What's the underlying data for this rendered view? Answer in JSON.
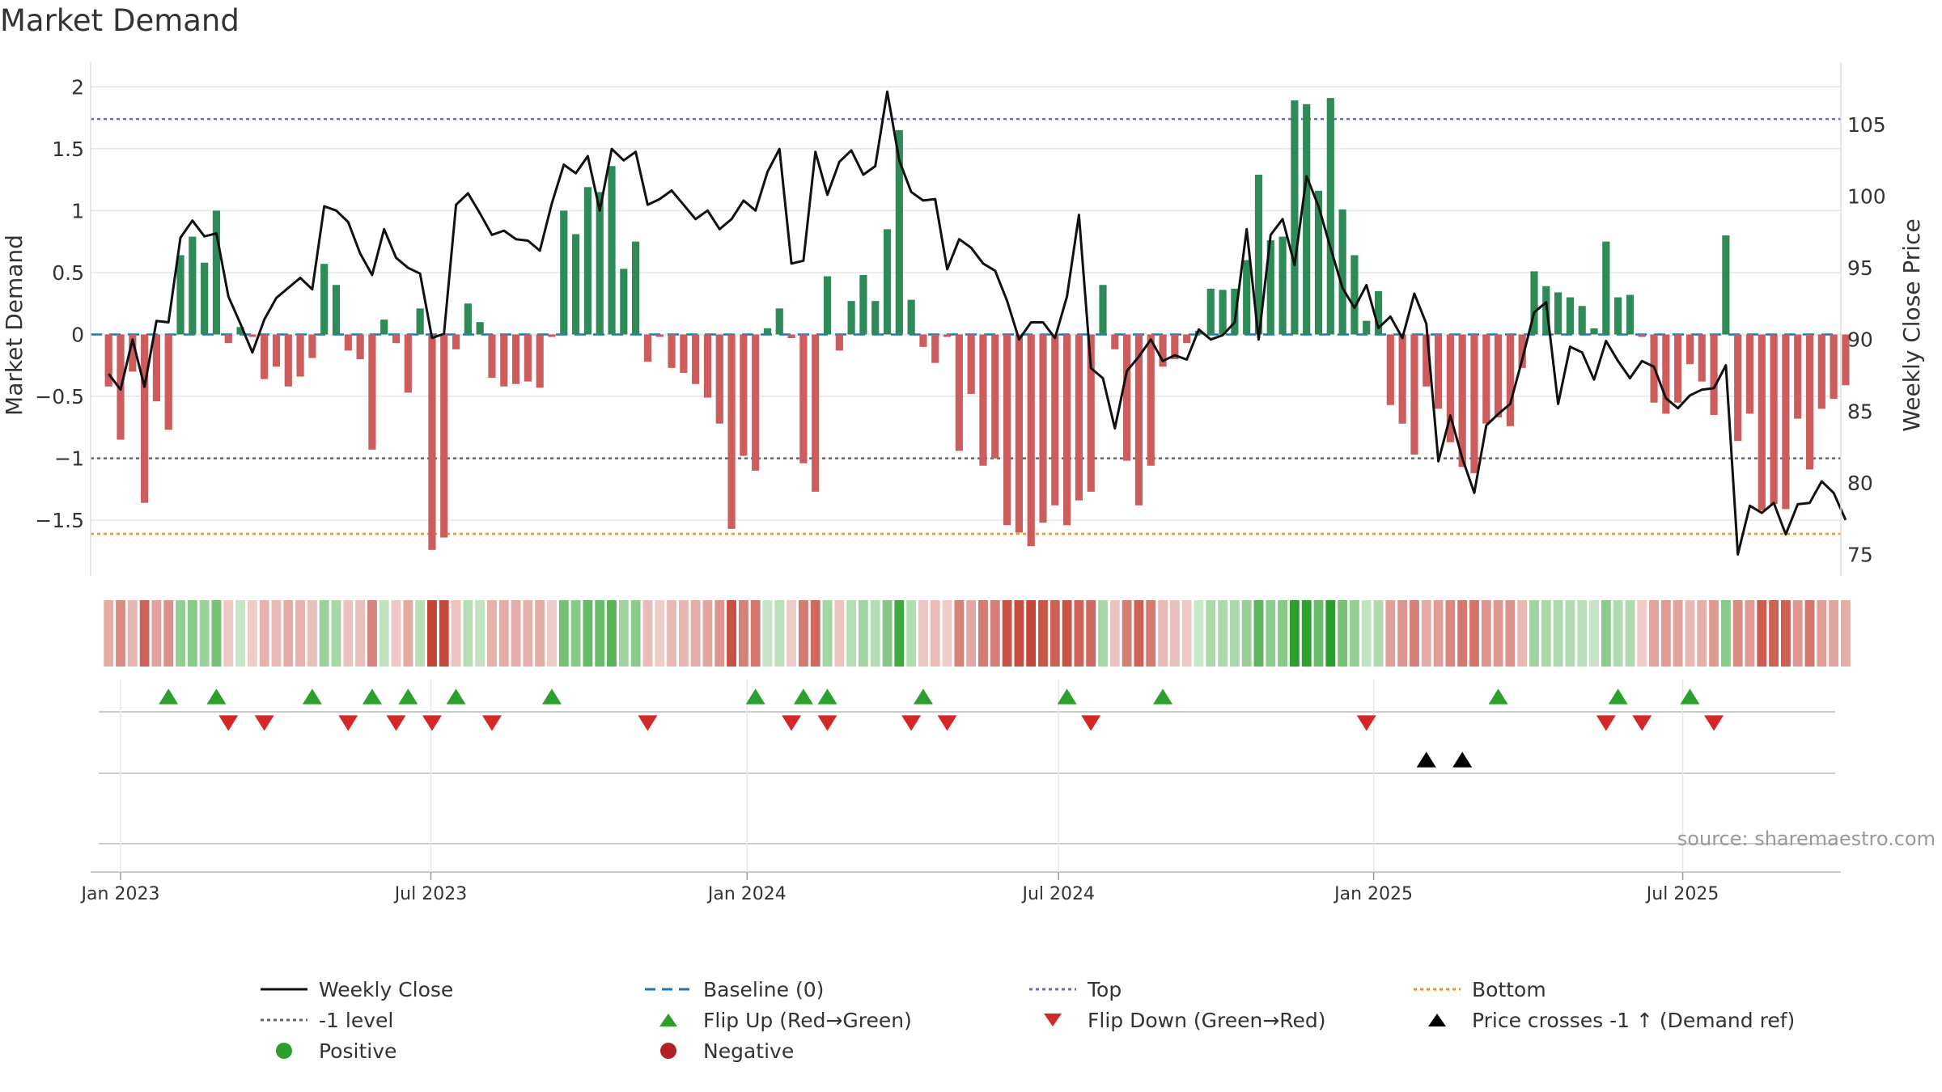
{
  "page_title": "Market Demand",
  "source_text": "source: sharemaestro.com",
  "colors": {
    "pos": "#2e8b57",
    "neg": "#cd5c5c",
    "price": "#111111",
    "baseline": "#1f77b4",
    "top": "#6a6ad0",
    "bottom": "#ff8c1a",
    "minus1": "#666666",
    "flip_up": "#2ca02c",
    "flip_down": "#d62728",
    "cross": "#000000"
  },
  "legend": [
    {
      "key": "close",
      "label": "Weekly Close",
      "style": "line"
    },
    {
      "key": "baseline",
      "label": "Baseline (0)",
      "style": "dash"
    },
    {
      "key": "top",
      "label": "Top",
      "style": "dot"
    },
    {
      "key": "bottom",
      "label": "Bottom",
      "style": "dot"
    },
    {
      "key": "minus1",
      "label": "-1 level",
      "style": "dot"
    },
    {
      "key": "flip_up",
      "label": "Flip Up (Red→Green)",
      "style": "tri-up"
    },
    {
      "key": "flip_down",
      "label": "Flip Down (Green→Red)",
      "style": "tri-down"
    },
    {
      "key": "cross",
      "label": "Price crosses -1 ↑ (Demand ref)",
      "style": "tri-up"
    },
    {
      "key": "positive",
      "label": "Positive",
      "style": "circle"
    },
    {
      "key": "negative",
      "label": "Negative",
      "style": "circle"
    }
  ],
  "chart_data": {
    "type": "bar",
    "title": "Market Demand",
    "ylabel": "Market Demand",
    "y2label": "Weekly Close Price",
    "ylim": [
      -1.95,
      2.1
    ],
    "y2lim": [
      73.5,
      108.5
    ],
    "yticks": [
      -1.5,
      -1,
      -0.5,
      0,
      0.5,
      1,
      1.5,
      2
    ],
    "ytick_labels": [
      "−1.5",
      "−1",
      "−0.5",
      "0",
      "0.5",
      "1",
      "1.5",
      "2"
    ],
    "y2ticks": [
      75,
      80,
      85,
      90,
      95,
      100,
      105
    ],
    "ref_lines": {
      "top": 1.74,
      "bottom": -1.61,
      "minus1": -1.0,
      "baseline": 0
    },
    "x_start": "2022-12-26",
    "x_range_weeks": [
      -1.5,
      144.6
    ],
    "x_ticks": [
      {
        "label": "Jan 2023",
        "week": 1
      },
      {
        "label": "Jul 2023",
        "week": 26.9
      },
      {
        "label": "Jan 2024",
        "week": 53.3
      },
      {
        "label": "Jul 2024",
        "week": 79.3
      },
      {
        "label": "Jan 2025",
        "week": 105.6
      },
      {
        "label": "Jul 2025",
        "week": 131.4
      }
    ],
    "demand": [
      -0.42,
      -0.85,
      -0.3,
      -1.36,
      -0.54,
      -0.77,
      0.64,
      0.79,
      0.58,
      1.0,
      -0.07,
      0.06,
      -0.02,
      -0.36,
      -0.26,
      -0.42,
      -0.34,
      -0.19,
      0.57,
      0.4,
      -0.13,
      -0.2,
      -0.93,
      0.12,
      -0.07,
      -0.47,
      0.21,
      -1.74,
      -1.64,
      -0.12,
      0.25,
      0.1,
      -0.35,
      -0.42,
      -0.4,
      -0.38,
      -0.43,
      -0.02,
      1.0,
      0.81,
      1.19,
      1.15,
      1.36,
      0.53,
      0.75,
      -0.22,
      -0.02,
      -0.27,
      -0.31,
      -0.4,
      -0.51,
      -0.72,
      -1.57,
      -0.98,
      -1.1,
      0.05,
      0.21,
      -0.03,
      -1.04,
      -1.27,
      0.47,
      -0.13,
      0.27,
      0.48,
      0.27,
      0.85,
      1.65,
      0.28,
      -0.1,
      -0.23,
      -0.02,
      -0.94,
      -0.48,
      -1.06,
      -1.0,
      -1.54,
      -1.6,
      -1.71,
      -1.52,
      -1.38,
      -1.54,
      -1.34,
      -1.27,
      0.4,
      -0.12,
      -1.02,
      -1.38,
      -1.06,
      -0.26,
      -0.2,
      -0.07,
      0.03,
      0.37,
      0.36,
      0.37,
      0.6,
      1.29,
      0.76,
      0.79,
      1.89,
      1.86,
      1.16,
      1.91,
      1.01,
      0.64,
      0.11,
      0.35,
      -0.57,
      -0.72,
      -0.97,
      -0.42,
      -0.6,
      -0.87,
      -1.07,
      -1.12,
      -0.72,
      -0.67,
      -0.74,
      -0.27,
      0.51,
      0.39,
      0.34,
      0.3,
      0.23,
      0.05,
      0.75,
      0.3,
      0.32,
      -0.02,
      -0.55,
      -0.64,
      -0.55,
      -0.24,
      -0.38,
      -0.65,
      0.8,
      -0.86,
      -0.64,
      -1.42,
      -1.37,
      -1.41,
      -0.68,
      -1.09,
      -0.6,
      -0.52,
      -0.41
    ],
    "price": [
      87.6,
      86.5,
      90.0,
      86.7,
      91.3,
      91.2,
      97.1,
      98.3,
      97.2,
      97.4,
      93.0,
      91.1,
      89.1,
      91.4,
      92.9,
      93.6,
      94.3,
      93.5,
      99.3,
      99.0,
      98.2,
      96.0,
      94.5,
      97.7,
      95.7,
      95.0,
      94.6,
      90.1,
      90.4,
      99.4,
      100.2,
      98.8,
      97.3,
      97.6,
      97.0,
      96.9,
      96.2,
      99.5,
      102.2,
      101.6,
      102.8,
      99.0,
      103.3,
      102.5,
      103.1,
      99.4,
      99.8,
      100.4,
      99.4,
      98.4,
      99.0,
      97.7,
      98.4,
      99.7,
      99.0,
      101.7,
      103.3,
      95.3,
      95.5,
      103.1,
      100.1,
      102.4,
      103.2,
      101.5,
      102.1,
      107.3,
      102.5,
      100.3,
      99.7,
      99.8,
      94.9,
      97.0,
      96.4,
      95.3,
      94.8,
      92.7,
      90.0,
      91.2,
      91.2,
      90.1,
      93.0,
      98.7,
      88.0,
      87.3,
      83.8,
      87.8,
      88.8,
      90.0,
      88.5,
      88.9,
      88.6,
      90.7,
      90.0,
      90.3,
      91.2,
      97.7,
      90.0,
      97.3,
      98.4,
      95.2,
      101.4,
      99.3,
      96.4,
      93.6,
      92.2,
      93.8,
      90.8,
      91.6,
      90.1,
      93.2,
      91.1,
      81.5,
      84.7,
      81.7,
      79.3,
      84.0,
      84.8,
      85.5,
      88.6,
      91.9,
      92.6,
      85.5,
      89.5,
      89.1,
      87.2,
      89.9,
      88.5,
      87.3,
      88.5,
      88.1,
      85.9,
      85.2,
      86.1,
      86.5,
      86.6,
      88.2,
      75.0,
      78.4,
      77.9,
      78.6,
      76.4,
      78.5,
      78.6,
      80.1,
      79.3,
      77.4
    ],
    "flip_up_weeks": [
      5,
      9,
      17,
      22,
      25,
      29,
      37,
      54,
      58,
      60,
      68,
      80,
      88,
      116,
      126,
      132
    ],
    "flip_down_weeks": [
      10,
      13,
      20,
      24,
      27,
      32,
      45,
      57,
      60,
      67,
      70,
      82,
      105,
      125,
      128,
      134
    ],
    "price_cross_weeks": [
      110,
      113
    ]
  }
}
